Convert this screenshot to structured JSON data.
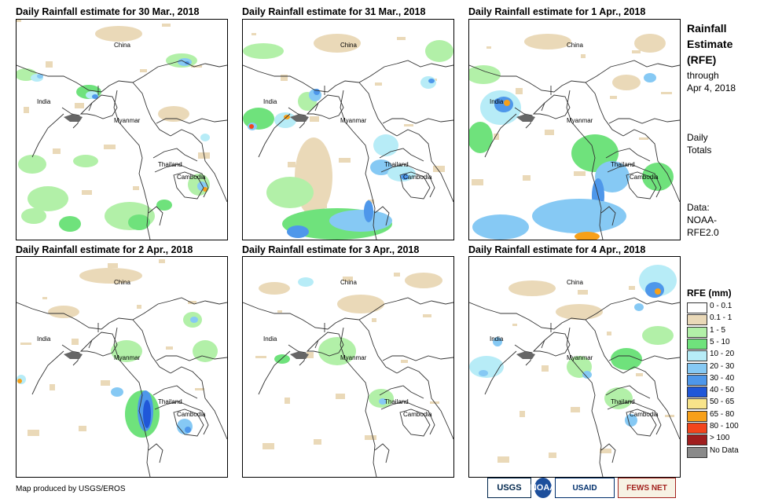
{
  "panels": [
    {
      "title": "Daily Rainfall estimate for 30 Mar., 2018",
      "labels": {
        "china": "China",
        "india": "India",
        "myanmar": "Myanmar",
        "thailand": "Thailand",
        "cambodia": "Cambodia"
      }
    },
    {
      "title": "Daily Rainfall estimate for 31 Mar., 2018",
      "labels": {
        "china": "China",
        "india": "India",
        "myanmar": "Myanmar",
        "thailand": "Thailand",
        "cambodia": "Cambodia"
      }
    },
    {
      "title": "Daily Rainfall estimate for 1 Apr., 2018",
      "labels": {
        "china": "China",
        "india": "India",
        "myanmar": "Myanmar",
        "thailand": "Thailand",
        "cambodia": "Cambodia"
      }
    },
    {
      "title": "Daily Rainfall estimate for 2 Apr., 2018",
      "labels": {
        "china": "China",
        "india": "India",
        "myanmar": "Myanmar",
        "thailand": "Thailand",
        "cambodia": "Cambodia"
      }
    },
    {
      "title": "Daily Rainfall estimate for 3 Apr., 2018",
      "labels": {
        "china": "China",
        "india": "India",
        "myanmar": "Myanmar",
        "thailand": "Thailand",
        "cambodia": "Cambodia"
      }
    },
    {
      "title": "Daily Rainfall estimate for 4 Apr., 2018",
      "labels": {
        "china": "China",
        "india": "India",
        "myanmar": "Myanmar",
        "thailand": "Thailand",
        "cambodia": "Cambodia"
      }
    }
  ],
  "sidebar": {
    "title_line1": "Rainfall",
    "title_line2": "Estimate",
    "title_line3": "(RFE)",
    "through_line1": "through",
    "through_line2": "Apr 4, 2018",
    "daily_line1": "Daily",
    "daily_line2": "Totals",
    "data_line1": "Data:",
    "data_line2": "NOAA-",
    "data_line3": "RFE2.0"
  },
  "legend": {
    "title": "RFE (mm)",
    "items": [
      {
        "label": "0 - 0.1",
        "color": "#ffffff"
      },
      {
        "label": "0.1 - 1",
        "color": "#ead9b8"
      },
      {
        "label": "1 - 5",
        "color": "#b2f0a8"
      },
      {
        "label": "5 - 10",
        "color": "#6fe27c"
      },
      {
        "label": "10 - 20",
        "color": "#b7ecf7"
      },
      {
        "label": "20 - 30",
        "color": "#86c9f4"
      },
      {
        "label": "30 - 40",
        "color": "#4e97ea"
      },
      {
        "label": "40 - 50",
        "color": "#2057d8"
      },
      {
        "label": "50 - 65",
        "color": "#f8e48a"
      },
      {
        "label": "65 - 80",
        "color": "#f7a019"
      },
      {
        "label": "80 - 100",
        "color": "#f2451c"
      },
      {
        "label": "> 100",
        "color": "#a01e1e"
      },
      {
        "label": "No Data",
        "color": "#8a8a8a"
      }
    ]
  },
  "footer": {
    "credit": "Map produced by USGS/EROS",
    "logos": [
      "USGS",
      "NOAA",
      "USAID",
      "FEWS NET"
    ]
  }
}
